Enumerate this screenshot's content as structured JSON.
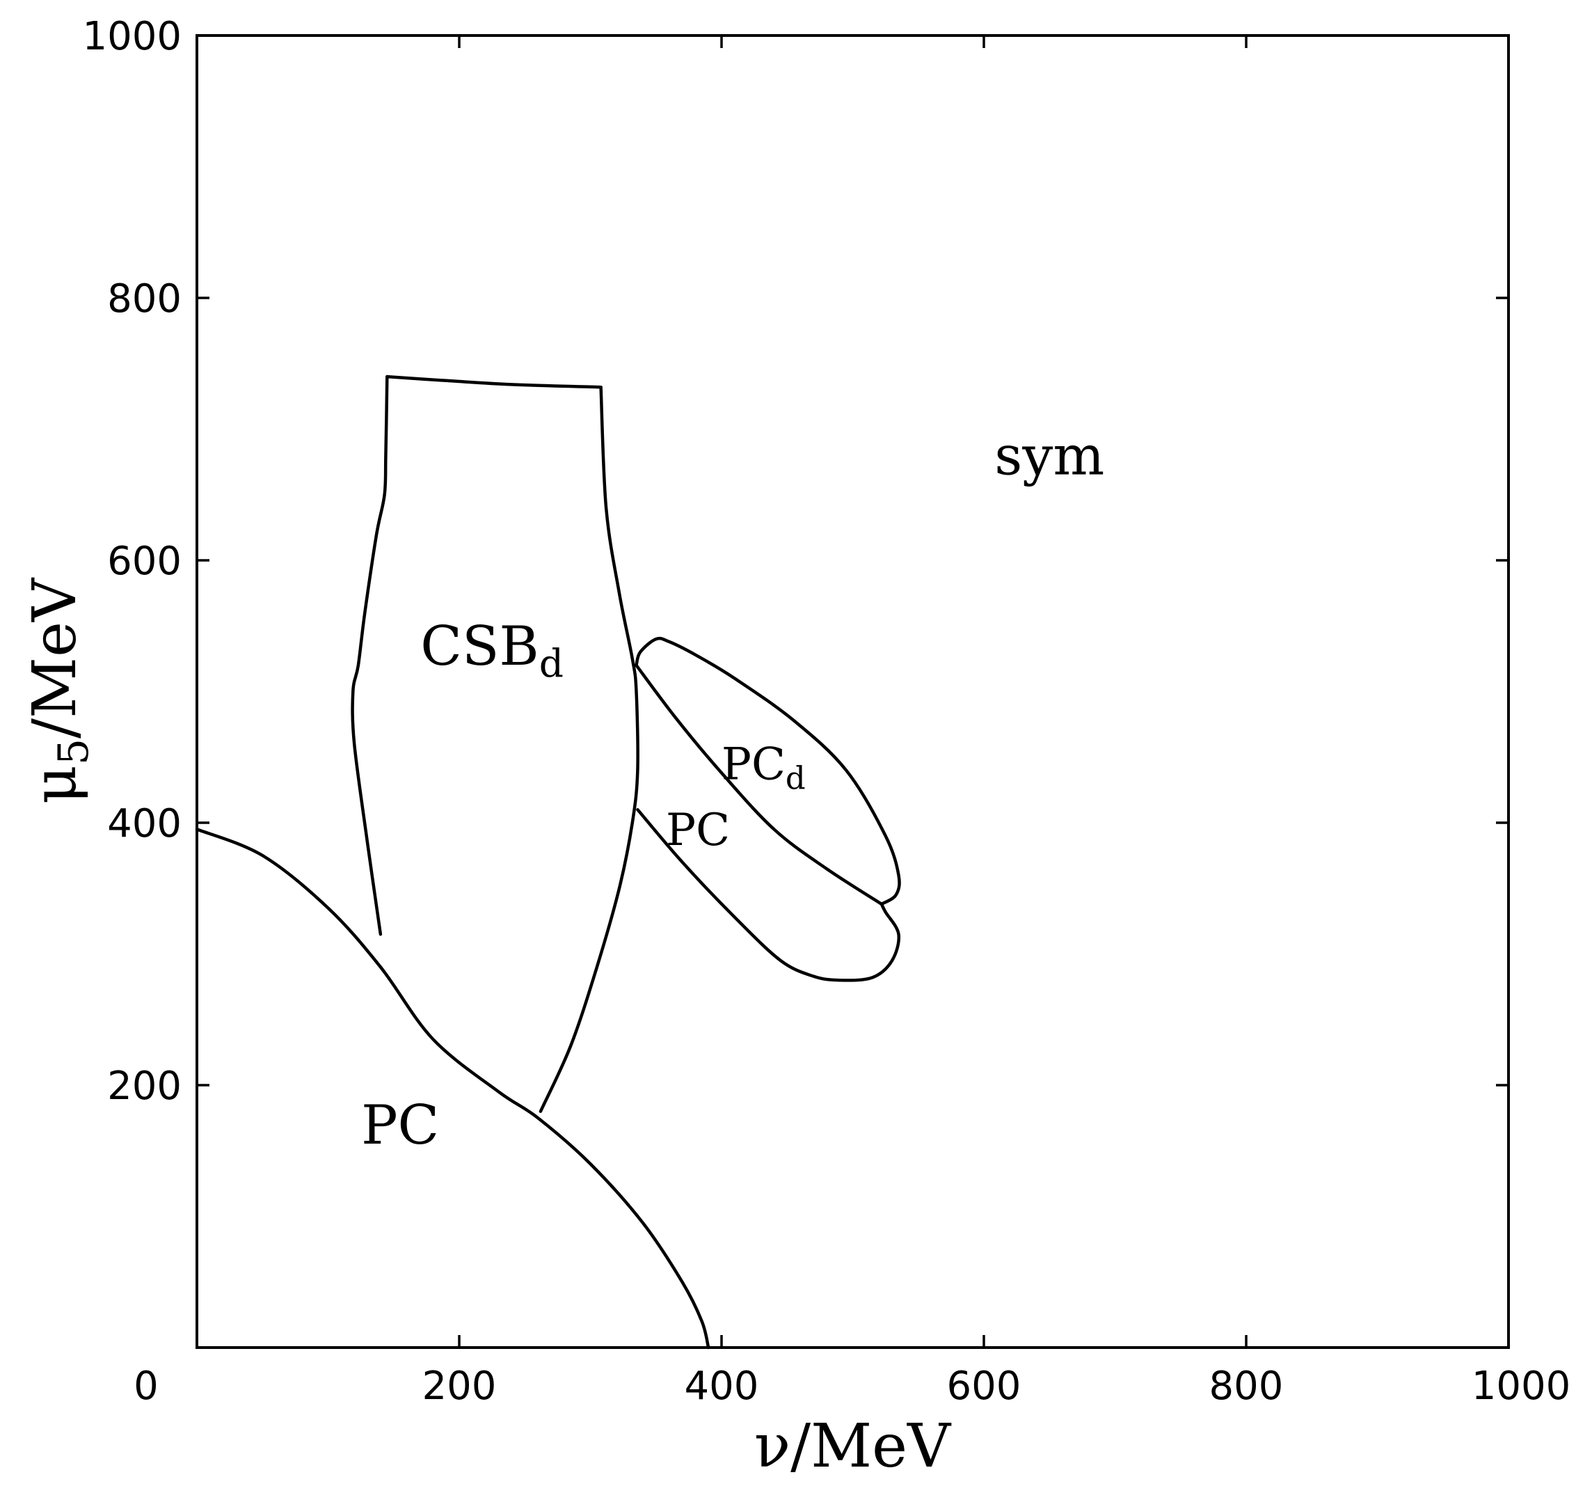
{
  "chart_data": {
    "type": "line",
    "title": "",
    "xlabel": "ν/MeV",
    "ylabel": {
      "main": "μ",
      "sub": "5",
      "rest": "/MeV"
    },
    "xlim": [
      0,
      1000
    ],
    "ylim": [
      0,
      1000
    ],
    "xticks": [
      0,
      200,
      400,
      600,
      800,
      1000
    ],
    "yticks": [
      200,
      400,
      600,
      800,
      1000
    ],
    "grid": false,
    "series": [
      {
        "x": [
          0,
          50,
          100,
          140,
          180,
          230,
          260,
          300,
          340,
          370,
          385,
          390
        ],
        "y": [
          395,
          375,
          335,
          290,
          235,
          195,
          175,
          140,
          95,
          50,
          20,
          0
        ]
      },
      {
        "x": [
          140,
          130,
          120,
          119,
          123,
          128,
          137,
          143,
          144,
          145
        ],
        "y": [
          315,
          385,
          460,
          500,
          520,
          560,
          620,
          650,
          680,
          740
        ]
      },
      {
        "x": [
          145,
          190,
          240,
          308
        ],
        "y": [
          740,
          737,
          734,
          732
        ]
      },
      {
        "x": [
          262,
          285,
          305,
          322,
          332,
          336,
          335,
          332,
          322,
          312,
          308
        ],
        "y": [
          180,
          230,
          290,
          350,
          400,
          440,
          500,
          525,
          575,
          640,
          732
        ]
      },
      {
        "x": [
          335,
          365,
          400,
          440,
          480,
          522
        ],
        "y": [
          520,
          480,
          438,
          395,
          365,
          338
        ]
      },
      {
        "x": [
          336,
          370,
          410,
          445,
          470,
          490,
          515,
          530,
          535,
          525,
          522
        ],
        "y": [
          410,
          370,
          328,
          295,
          283,
          280,
          282,
          295,
          315,
          332,
          338
        ]
      },
      {
        "x": [
          522,
          533,
          535,
          525,
          495,
          455,
          410,
          380,
          360,
          350,
          338,
          335
        ],
        "y": [
          338,
          345,
          360,
          390,
          440,
          478,
          510,
          528,
          538,
          540,
          530,
          520
        ]
      }
    ],
    "annotations": [
      {
        "text": "sym",
        "x": 650,
        "y": 680
      },
      {
        "text": "CSB",
        "sub": "d",
        "x": 225,
        "y": 535
      },
      {
        "text": "PC",
        "sub": "d",
        "x": 432,
        "y": 445
      },
      {
        "text": "PC",
        "x": 382,
        "y": 395
      },
      {
        "text": "PC",
        "x": 155,
        "y": 170
      }
    ]
  }
}
